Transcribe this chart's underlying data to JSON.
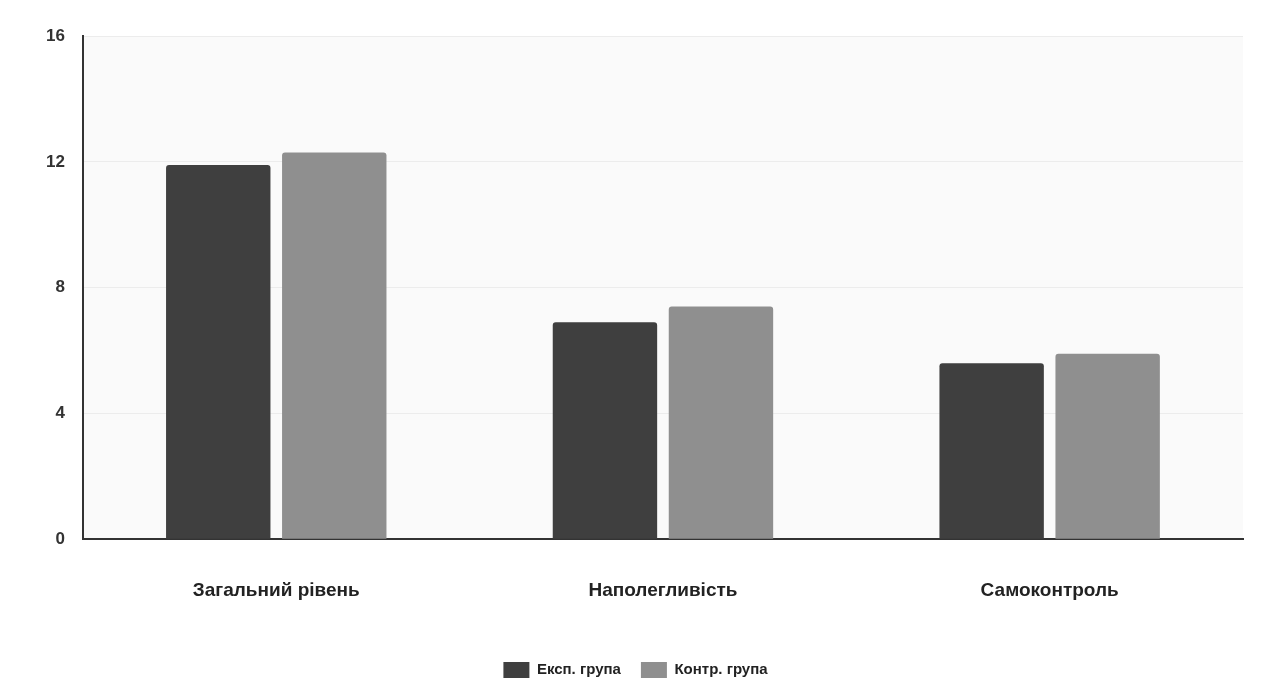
{
  "chart_data": {
    "type": "bar",
    "categories": [
      "Загальний рівень",
      "Наполегливість",
      "Самоконтроль"
    ],
    "series": [
      {
        "name": "Експ. група",
        "color": "#3f3f3f",
        "values": [
          11.9,
          6.9,
          5.6
        ]
      },
      {
        "name": "Контр. група",
        "color": "#8f8f8f",
        "values": [
          12.3,
          7.4,
          5.9
        ]
      }
    ],
    "ylim": [
      0,
      16
    ],
    "yticks": [
      0,
      4,
      8,
      12,
      16
    ],
    "grid": "y",
    "legend": "bottom"
  }
}
